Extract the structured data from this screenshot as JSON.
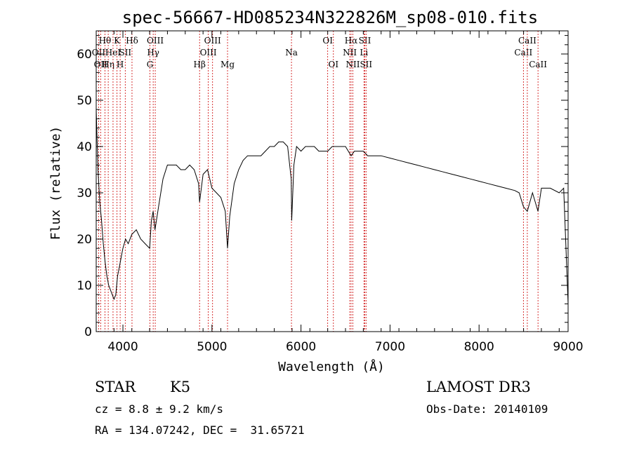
{
  "chart_data": {
    "type": "line",
    "title": "spec-56667-HD085234N322826M_sp08-010.fits",
    "xlabel": "Wavelength (Å)",
    "ylabel": "Flux (relative)",
    "xlim": [
      3700,
      9000
    ],
    "ylim": [
      0,
      65
    ],
    "xticks": [
      4000,
      5000,
      6000,
      7000,
      8000,
      9000
    ],
    "yticks": [
      0,
      10,
      20,
      30,
      40,
      50,
      60
    ],
    "grid": false,
    "line_color": "#000000",
    "marker_color": "#cc0000",
    "series": [
      {
        "x": [
          3700,
          3720,
          3740,
          3760,
          3780,
          3800,
          3820,
          3840,
          3860,
          3880,
          3900,
          3920,
          3940,
          3960,
          3980,
          4000,
          4030,
          4060,
          4100,
          4150,
          4200,
          4250,
          4300,
          4320,
          4340,
          4360,
          4400,
          4450,
          4500,
          4550,
          4600,
          4650,
          4700,
          4750,
          4800,
          4850,
          4861,
          4900,
          4950,
          5000,
          5050,
          5100,
          5150,
          5175,
          5200,
          5250,
          5300,
          5350,
          5400,
          5450,
          5500,
          5550,
          5600,
          5650,
          5700,
          5750,
          5800,
          5850,
          5890,
          5896,
          5920,
          5950,
          6000,
          6050,
          6100,
          6150,
          6200,
          6250,
          6300,
          6350,
          6400,
          6450,
          6500,
          6563,
          6600,
          6650,
          6700,
          6750,
          6800,
          6900,
          7000,
          7100,
          7200,
          7300,
          7400,
          7500,
          7600,
          7700,
          7800,
          7900,
          8000,
          8100,
          8200,
          8300,
          8400,
          8450,
          8498,
          8542,
          8600,
          8662,
          8700,
          8800,
          8900,
          8950,
          9000
        ],
        "y": [
          48,
          35,
          28,
          24,
          19,
          15,
          12,
          10,
          9,
          8,
          7,
          8,
          12,
          14,
          16,
          18,
          20,
          19,
          21,
          22,
          20,
          19,
          18,
          24,
          26,
          22,
          27,
          33,
          36,
          36,
          36,
          35,
          35,
          36,
          35,
          32,
          28,
          34,
          35,
          31,
          30,
          29,
          26,
          18,
          25,
          32,
          35,
          37,
          38,
          38,
          38,
          38,
          39,
          40,
          40,
          41,
          41,
          40,
          33,
          24,
          36,
          40,
          39,
          40,
          40,
          40,
          39,
          39,
          39,
          40,
          40,
          40,
          40,
          38,
          39,
          39,
          39,
          38,
          38,
          38,
          37.5,
          37,
          36.5,
          36,
          35.5,
          35,
          34.5,
          34,
          33.5,
          33,
          32.5,
          32,
          31.5,
          31,
          30.5,
          30,
          27,
          26,
          30,
          26,
          31,
          31,
          30,
          31,
          6
        ]
      }
    ],
    "line_markers": [
      {
        "wl": 3727,
        "label": "OII",
        "row": 2
      },
      {
        "wl": 3750,
        "label": "OII",
        "row": 3
      },
      {
        "wl": 3798,
        "label": "Hθ",
        "row": 1
      },
      {
        "wl": 3835,
        "label": "Hη",
        "row": 3
      },
      {
        "wl": 3889,
        "label": "HeI",
        "row": 2
      },
      {
        "wl": 3934,
        "label": "K",
        "row": 1
      },
      {
        "wl": 3969,
        "label": "H",
        "row": 3
      },
      {
        "wl": 4026,
        "label": "SII",
        "row": 2
      },
      {
        "wl": 4102,
        "label": "Hδ",
        "row": 1
      },
      {
        "wl": 4304,
        "label": "G",
        "row": 3
      },
      {
        "wl": 4340,
        "label": "Hγ",
        "row": 2
      },
      {
        "wl": 4363,
        "label": "OIII",
        "row": 1
      },
      {
        "wl": 4861,
        "label": "Hβ",
        "row": 3
      },
      {
        "wl": 4959,
        "label": "OIII",
        "row": 2
      },
      {
        "wl": 5007,
        "label": "OIII",
        "row": 1
      },
      {
        "wl": 5175,
        "label": "Mg",
        "row": 3
      },
      {
        "wl": 5893,
        "label": "Na",
        "row": 2
      },
      {
        "wl": 6300,
        "label": "OI",
        "row": 1
      },
      {
        "wl": 6364,
        "label": "OI",
        "row": 3
      },
      {
        "wl": 6548,
        "label": "NII",
        "row": 2
      },
      {
        "wl": 6563,
        "label": "Hα",
        "row": 1
      },
      {
        "wl": 6583,
        "label": "NII",
        "row": 3
      },
      {
        "wl": 6707,
        "label": "Li",
        "row": 2
      },
      {
        "wl": 6717,
        "label": "SII",
        "row": 1
      },
      {
        "wl": 6731,
        "label": "SII",
        "row": 3
      },
      {
        "wl": 8498,
        "label": "CaII",
        "row": 2
      },
      {
        "wl": 8542,
        "label": "CaII",
        "row": 1
      },
      {
        "wl": 8662,
        "label": "CaII",
        "row": 3
      }
    ]
  },
  "info": {
    "object_type": "STAR",
    "subclass": "K5",
    "survey": "LAMOST DR3",
    "cz": "cz = 8.8 ± 9.2 km/s",
    "obs_date": "Obs-Date: 20140109",
    "coords": "RA = 134.07242, DEC =  31.65721"
  }
}
